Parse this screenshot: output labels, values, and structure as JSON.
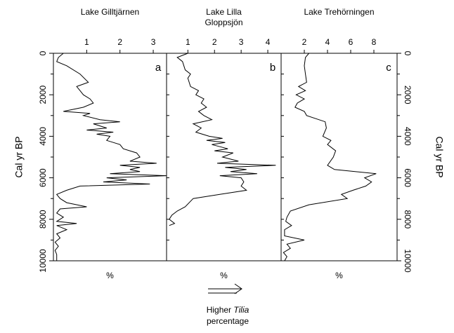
{
  "chart_data": [
    {
      "type": "line",
      "title": "Lake Gilltjärnen",
      "xlabel": "%",
      "panel_label": "a",
      "color": "#000000",
      "ylabel": "Cal yr BP",
      "yaxis_side": "left",
      "xlim": [
        0,
        3.4
      ],
      "xticks": [
        1,
        2,
        3
      ],
      "ylim": [
        0,
        10000
      ],
      "yticks": [
        0,
        2000,
        4000,
        6000,
        8000,
        10000
      ],
      "yticks_minor": [
        1000,
        3000,
        5000,
        7000,
        9000
      ],
      "x": [
        0,
        200,
        400,
        600,
        1000,
        1400,
        1600,
        1800,
        2000,
        2200,
        2400,
        2600,
        2800,
        2900,
        3000,
        3200,
        3300,
        3400,
        3600,
        3700,
        3800,
        3900,
        4000,
        4200,
        4400,
        4600,
        4800,
        5000,
        5200,
        5300,
        5400,
        5500,
        5600,
        5700,
        5800,
        5900,
        6000,
        6100,
        6200,
        6300,
        6400,
        6600,
        6800,
        7000,
        7200,
        7400,
        7500,
        7700,
        7900,
        8100,
        8200,
        8300,
        8500,
        8700,
        8900,
        9100,
        9300,
        9500,
        9700,
        10000
      ],
      "values": [
        0.3,
        0.15,
        0.1,
        0.4,
        0.8,
        1.05,
        0.7,
        0.8,
        0.9,
        1.1,
        1.2,
        0.9,
        0.3,
        1.1,
        0.9,
        1.4,
        2.0,
        1.2,
        1.6,
        1.0,
        1.8,
        1.3,
        1.7,
        1.6,
        2.0,
        2.1,
        2.5,
        2.6,
        2.3,
        3.1,
        2.0,
        2.6,
        2.3,
        2.6,
        1.7,
        3.4,
        1.6,
        2.2,
        1.5,
        2.9,
        0.8,
        0.4,
        0.1,
        0.2,
        0.4,
        1.0,
        0.2,
        0.1,
        0.3,
        0.1,
        0.7,
        0.1,
        0.4,
        0.1,
        0.2,
        0.05,
        0.15,
        0.05,
        0.1,
        0.1
      ]
    },
    {
      "type": "line",
      "title": [
        "Lake Lilla",
        "Gloppsjön"
      ],
      "xlabel": "%",
      "panel_label": "b",
      "color": "#000000",
      "xlim": [
        0.2,
        4.5
      ],
      "xticks": [
        1,
        2,
        3,
        4
      ],
      "ylim": [
        0,
        10000
      ],
      "x": [
        0,
        200,
        400,
        800,
        1000,
        1200,
        1600,
        1800,
        2000,
        2200,
        2400,
        2600,
        2800,
        3000,
        3200,
        3400,
        3600,
        3800,
        4000,
        4100,
        4200,
        4300,
        4400,
        4600,
        4700,
        4800,
        5000,
        5200,
        5300,
        5400,
        5500,
        5600,
        5700,
        5800,
        5900,
        6000,
        6200,
        6400,
        6600,
        6800,
        7000,
        7400,
        7600,
        7800,
        8000,
        8200,
        8300
      ],
      "values": [
        1.0,
        0.6,
        0.8,
        0.9,
        1.1,
        1.0,
        1.1,
        1.4,
        1.3,
        1.6,
        1.5,
        1.7,
        1.4,
        1.6,
        1.9,
        1.2,
        1.5,
        1.3,
        1.8,
        2.3,
        1.7,
        2.4,
        1.9,
        2.5,
        2.0,
        2.7,
        2.3,
        2.9,
        2.1,
        4.3,
        2.4,
        3.2,
        2.6,
        3.6,
        2.2,
        3.0,
        3.1,
        3.0,
        3.2,
        2.2,
        1.2,
        0.9,
        0.6,
        0.4,
        0.3,
        0.5,
        0.3
      ]
    },
    {
      "type": "line",
      "title": "Lake Trehörningen",
      "xlabel": "%",
      "panel_label": "c",
      "color": "#000000",
      "ylabel": "Cal yr BP",
      "yaxis_side": "right",
      "xlim": [
        0,
        10
      ],
      "xticks": [
        2,
        4,
        6,
        8
      ],
      "ylim": [
        0,
        10000
      ],
      "yticks": [
        0,
        2000,
        4000,
        6000,
        8000,
        10000
      ],
      "yticks_minor": [
        1000,
        3000,
        5000,
        7000,
        9000
      ],
      "x": [
        0,
        200,
        600,
        1000,
        1400,
        1600,
        1800,
        2000,
        2200,
        2400,
        2600,
        2800,
        3000,
        3300,
        3600,
        4000,
        4200,
        4400,
        4700,
        5000,
        5400,
        5600,
        5800,
        6000,
        6200,
        6400,
        6600,
        6800,
        7000,
        7300,
        7600,
        7900,
        8100,
        8300,
        8500,
        8800,
        9000,
        9200,
        9400,
        9600,
        9800,
        10000
      ],
      "values": [
        2.4,
        2.1,
        2.0,
        2.1,
        2.2,
        1.5,
        2.1,
        1.3,
        2.0,
        1.4,
        1.2,
        2.0,
        2.2,
        3.8,
        3.9,
        3.6,
        4.3,
        4.0,
        4.7,
        4.5,
        4.0,
        4.6,
        8.2,
        7.2,
        7.8,
        7.3,
        6.2,
        5.2,
        5.7,
        2.4,
        0.8,
        0.5,
        0.4,
        0.9,
        0.3,
        0.3,
        2.0,
        0.5,
        0.8,
        0.2,
        0.5,
        0.3
      ]
    }
  ],
  "annotation": [
    "Higher",
    "Tilia",
    "percentage"
  ]
}
